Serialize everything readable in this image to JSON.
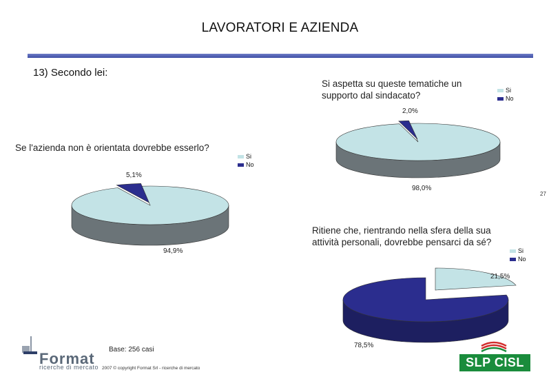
{
  "header": {
    "title": "LAVORATORI E AZIENDA",
    "subtitle": "13) Secondo lei:"
  },
  "page_number": "27",
  "footer": {
    "base": "Base: 256 casi",
    "copyright": "2007 © copyright Format Srl - ricerche di mercato",
    "format_logo_text": "Format",
    "format_logo_sub": "ricerche di mercato",
    "slp_logo_text": "SLP CISL"
  },
  "colors": {
    "si": "#c3e3e6",
    "no_q1": "#2b2d8e",
    "no_q3": "#2b2d8e",
    "shadow_si": "#6b7478",
    "shadow_no": "#1d1f60",
    "rule": "#4a5bb0"
  },
  "chart_data": [
    {
      "type": "pie",
      "title": "Si aspetta su queste tematiche un supporto dal sindacato?",
      "legend": [
        "Si",
        "No"
      ],
      "legend_position": "top-right",
      "slices": [
        {
          "label": "Si",
          "value": 98.0,
          "display": "98,0%"
        },
        {
          "label": "No",
          "value": 2.0,
          "display": "2,0%"
        }
      ]
    },
    {
      "type": "pie",
      "title": "Se l'azienda non è orientata dovrebbe esserlo?",
      "legend": [
        "Si",
        "No"
      ],
      "legend_position": "top-right",
      "slices": [
        {
          "label": "Si",
          "value": 94.9,
          "display": "94,9%"
        },
        {
          "label": "No",
          "value": 5.1,
          "display": "5,1%"
        }
      ]
    },
    {
      "type": "pie",
      "title": "Ritiene che, rientrando nella sfera della sua attività personali, dovrebbe pensarci da sé?",
      "legend": [
        "Si",
        "No"
      ],
      "legend_position": "top-right",
      "slices": [
        {
          "label": "Si",
          "value": 21.5,
          "display": "21,5%"
        },
        {
          "label": "No",
          "value": 78.5,
          "display": "78,5%"
        }
      ]
    }
  ]
}
